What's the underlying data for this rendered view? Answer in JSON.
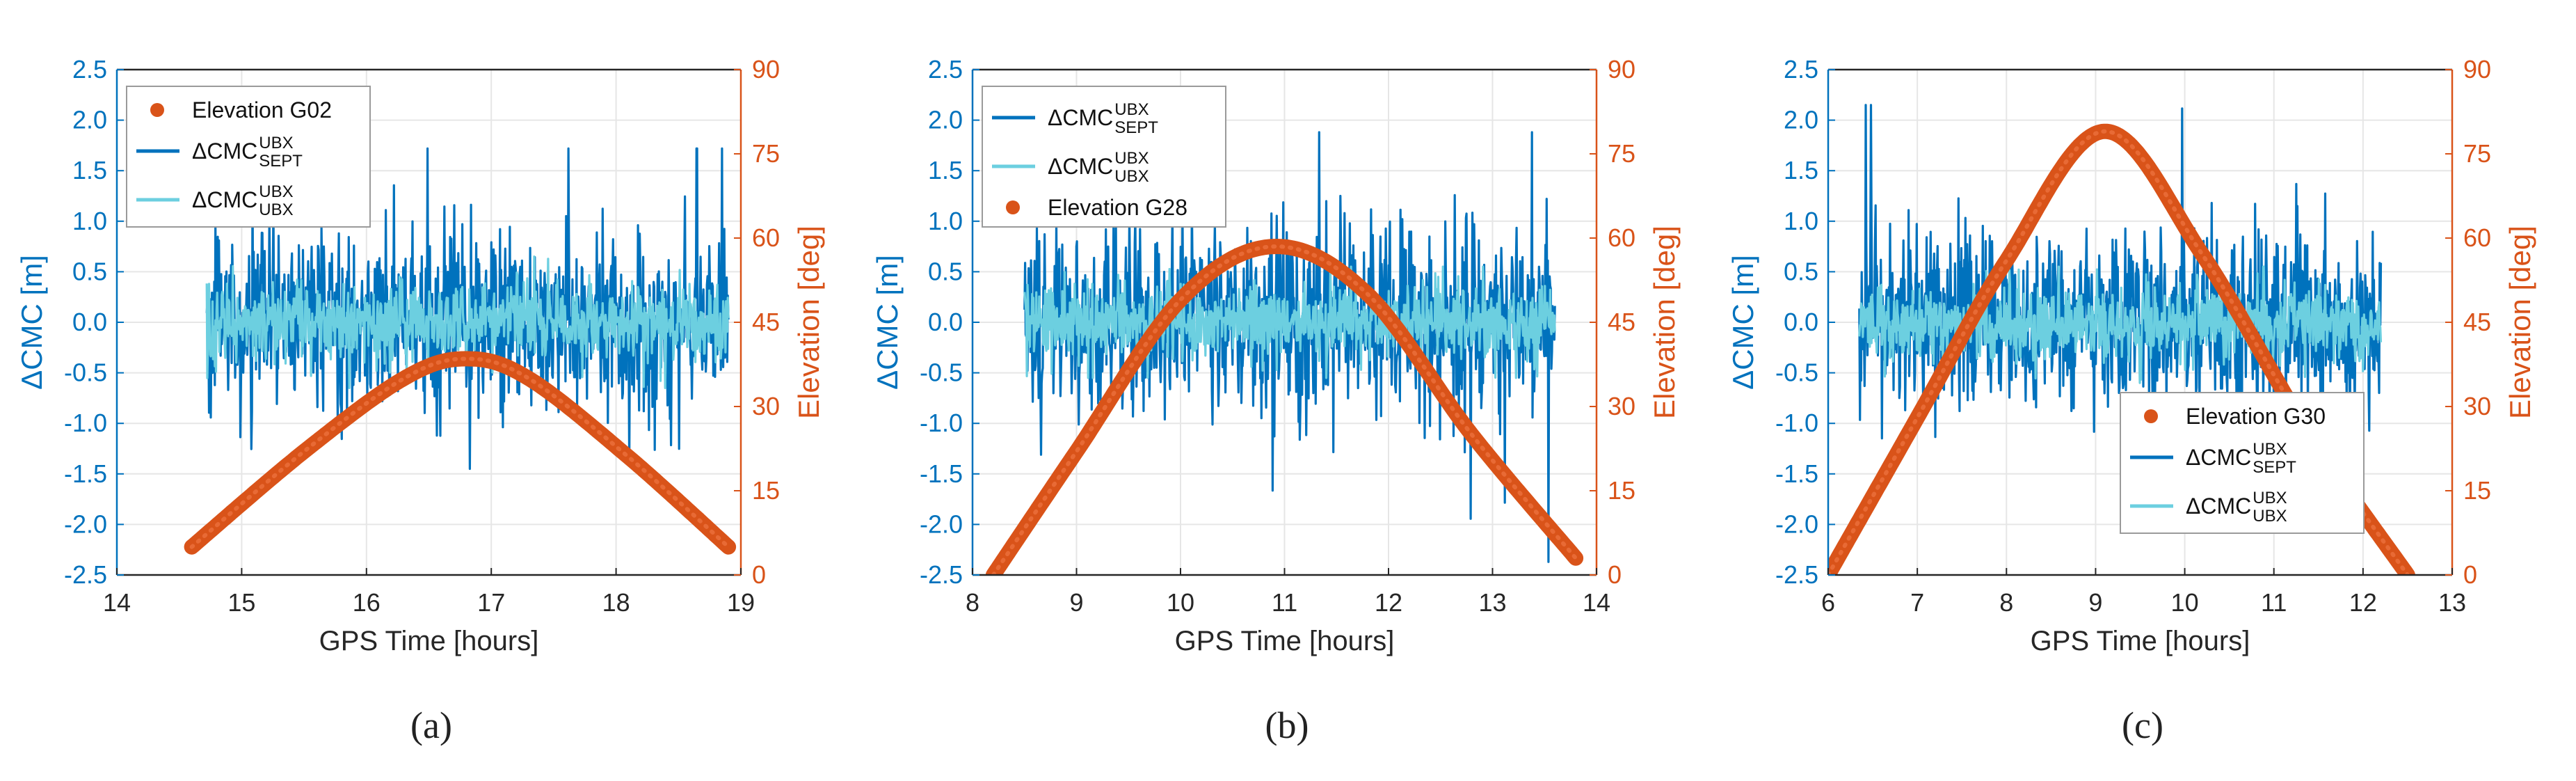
{
  "colors": {
    "sept": "#0072BD",
    "ubx": "#6CCFE0",
    "elev": "#D95319",
    "grid": "#E6E6E6",
    "axis": "#262626"
  },
  "chart_data": [
    {
      "type": "line",
      "panel": "(a)",
      "caption": "(a)",
      "xlabel": "GPS Time [hours]",
      "ylabel_left": "ΔCMC [m]",
      "ylabel_right": "Elevation [deg]",
      "xlim": [
        14,
        19
      ],
      "ylim_left": [
        -2.5,
        2.5
      ],
      "ylim_right": [
        0,
        90
      ],
      "xticks": [
        "14",
        "15",
        "16",
        "17",
        "18",
        "19"
      ],
      "yticks_left": [
        "-2.5",
        "-2.0",
        "-1.5",
        "-1.0",
        "-0.5",
        "0.0",
        "0.5",
        "1.0",
        "1.5",
        "2.0",
        "2.5"
      ],
      "yticks_right": [
        "0",
        "15",
        "30",
        "45",
        "60",
        "75",
        "90"
      ],
      "grid": true,
      "legend_position": "top-left",
      "legend": [
        {
          "series": "elevation",
          "label": "Elevation G02"
        },
        {
          "series": "sept",
          "label": "ΔCMC",
          "sup": "UBX",
          "sub": "SEPT"
        },
        {
          "series": "ubx",
          "label": "ΔCMC",
          "sup": "UBX",
          "sub": "UBX"
        }
      ],
      "elevation": {
        "name": "Elevation G02",
        "x": [
          14.6,
          15.5,
          16.3,
          16.8,
          17.3,
          18.1,
          18.9
        ],
        "y": [
          5,
          22,
          35,
          38.5,
          35,
          21,
          5
        ]
      },
      "sept_noise": {
        "name": "ΔCMC SEPT-UBX",
        "x_range": [
          14.72,
          18.9
        ],
        "std": 0.42,
        "max": 1.72,
        "min": -1.45,
        "peak_at_hours": [
          18.65,
          18.85
        ],
        "mean": 0
      },
      "ubx_noise": {
        "name": "ΔCMC UBX-UBX",
        "x_range": [
          14.72,
          18.9
        ],
        "std": 0.18,
        "max": 0.65,
        "min": -0.65,
        "mean": 0
      }
    },
    {
      "type": "line",
      "panel": "(b)",
      "caption": "(b)",
      "xlabel": "GPS Time [hours]",
      "ylabel_left": "ΔCMC [m]",
      "ylabel_right": "Elevation [deg]",
      "xlim": [
        8,
        14
      ],
      "ylim_left": [
        -2.5,
        2.5
      ],
      "ylim_right": [
        0,
        90
      ],
      "xticks": [
        "8",
        "9",
        "10",
        "11",
        "12",
        "13",
        "14"
      ],
      "yticks_left": [
        "-2.5",
        "-2.0",
        "-1.5",
        "-1.0",
        "-0.5",
        "0.0",
        "0.5",
        "1.0",
        "1.5",
        "2.0",
        "2.5"
      ],
      "yticks_right": [
        "0",
        "15",
        "30",
        "45",
        "60",
        "75",
        "90"
      ],
      "grid": true,
      "legend_position": "top-left",
      "legend": [
        {
          "series": "sept",
          "label": "ΔCMC",
          "sup": "UBX",
          "sub": "SEPT"
        },
        {
          "series": "ubx",
          "label": "ΔCMC",
          "sup": "UBX",
          "sub": "UBX"
        },
        {
          "series": "elevation",
          "label": "Elevation G28"
        }
      ],
      "elevation": {
        "name": "Elevation G28",
        "x": [
          8.2,
          9.0,
          10.0,
          10.9,
          11.8,
          12.8,
          13.8
        ],
        "y": [
          0,
          22,
          49,
          58.5,
          50,
          25,
          3
        ]
      },
      "sept_noise": {
        "name": "ΔCMC SEPT-UBX",
        "x_range": [
          8.5,
          13.6
        ],
        "std": 0.45,
        "max": 1.88,
        "min": -2.45,
        "peak_at_hours": [
          13.38
        ],
        "mean": 0
      },
      "ubx_noise": {
        "name": "ΔCMC UBX-UBX",
        "x_range": [
          8.5,
          13.6
        ],
        "std": 0.18,
        "max": 0.55,
        "min": -0.55,
        "mean": 0
      }
    },
    {
      "type": "line",
      "panel": "(c)",
      "caption": "(c)",
      "xlabel": "GPS Time [hours]",
      "ylabel_left": "ΔCMC [m]",
      "ylabel_right": "Elevation [deg]",
      "xlim": [
        6,
        13
      ],
      "ylim_left": [
        -2.5,
        2.5
      ],
      "ylim_right": [
        0,
        90
      ],
      "xticks": [
        "6",
        "7",
        "8",
        "9",
        "10",
        "11",
        "12",
        "13"
      ],
      "yticks_left": [
        "-2.5",
        "-2.0",
        "-1.5",
        "-1.0",
        "-0.5",
        "0.0",
        "0.5",
        "1.0",
        "1.5",
        "2.0",
        "2.5"
      ],
      "yticks_right": [
        "0",
        "15",
        "30",
        "45",
        "60",
        "75",
        "90"
      ],
      "grid": true,
      "legend_position": "bottom-center",
      "legend": [
        {
          "series": "elevation",
          "label": "Elevation G30"
        },
        {
          "series": "sept",
          "label": "ΔCMC",
          "sup": "UBX",
          "sub": "SEPT"
        },
        {
          "series": "ubx",
          "label": "ΔCMC",
          "sup": "UBX",
          "sub": "UBX"
        }
      ],
      "elevation": {
        "name": "Elevation G30",
        "x": [
          6.0,
          7.0,
          8.0,
          9.1,
          10.2,
          11.4,
          12.5
        ],
        "y": [
          0,
          28,
          56,
          79,
          57,
          25,
          0
        ]
      },
      "sept_noise": {
        "name": "ΔCMC SEPT-UBX",
        "x_range": [
          6.35,
          12.2
        ],
        "std": 0.42,
        "max": 2.15,
        "min": -2.05,
        "peak_at_hours": [
          6.42,
          6.48
        ],
        "mean": 0
      },
      "ubx_noise": {
        "name": "ΔCMC UBX-UBX",
        "x_range": [
          6.35,
          12.2
        ],
        "std": 0.18,
        "max": 0.55,
        "min": -0.6,
        "mean": 0
      }
    }
  ]
}
